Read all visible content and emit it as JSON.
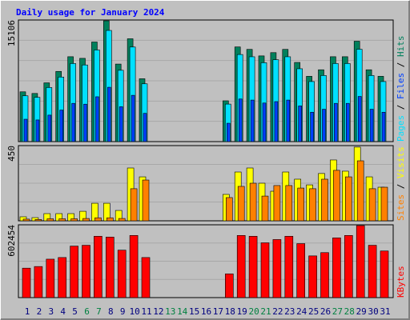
{
  "chart_data": [
    {
      "type": "bar",
      "title": "Daily usage for January 2024",
      "series": [
        {
          "name": "Hits",
          "color": "#00805c",
          "values": [
            6185,
            5983,
            7301,
            8720,
            10546,
            10343,
            12371,
            15006,
            9633,
            12776,
            7808,
            0,
            0,
            0,
            0,
            0,
            0,
            5070,
            11762,
            11458,
            10647,
            11053,
            11458,
            9836,
            8112,
            8923,
            10546,
            10546,
            12472,
            8923,
            8112
          ]
        },
        {
          "name": "Files",
          "color": "#0040ff",
          "values": [
            2780,
            2690,
            3290,
            3920,
            4750,
            4650,
            5570,
            6750,
            4330,
            5750,
            3510,
            0,
            0,
            0,
            0,
            0,
            0,
            2280,
            5290,
            5160,
            4790,
            4970,
            5160,
            4430,
            3650,
            4020,
            4750,
            4750,
            5610,
            4020,
            3650
          ]
        },
        {
          "name": "Pages",
          "color": "#00e0ff",
          "values": [
            5690,
            5500,
            6720,
            8020,
            9700,
            9520,
            11380,
            13810,
            8860,
            11750,
            7180,
            0,
            0,
            0,
            0,
            0,
            0,
            4660,
            10820,
            10540,
            9800,
            10170,
            10540,
            9050,
            7460,
            8210,
            9700,
            9700,
            11470,
            8210,
            7460
          ]
        }
      ],
      "ylim": [
        0,
        15106
      ],
      "yticks": [
        15106
      ],
      "legend_separator": " / "
    },
    {
      "type": "bar",
      "series": [
        {
          "name": "Visits",
          "color": "#ffff00",
          "values": [
            24,
            19,
            43,
            43,
            43,
            57,
            105,
            105,
            62,
            316,
            263,
            0,
            0,
            0,
            0,
            0,
            0,
            158,
            292,
            316,
            225,
            177,
            292,
            249,
            215,
            283,
            364,
            297,
            441,
            263,
            201
          ]
        },
        {
          "name": "Sites",
          "color": "#ff8000",
          "values": [
            10,
            8,
            12,
            12,
            12,
            14,
            18,
            18,
            14,
            192,
            244,
            0,
            0,
            0,
            0,
            0,
            0,
            139,
            206,
            225,
            148,
            211,
            211,
            196,
            192,
            249,
            302,
            263,
            359,
            192,
            201
          ]
        }
      ],
      "ylim": [
        0,
        450
      ],
      "yticks": [
        450
      ],
      "legend_separator": " / "
    },
    {
      "type": "bar",
      "series": [
        {
          "name": "KBytes",
          "color": "#ff0000",
          "values": [
            243700,
            257200,
            318100,
            331700,
            426400,
            433200,
            507700,
            500900,
            392600,
            514400,
            331700,
            0,
            0,
            0,
            0,
            0,
            0,
            196300,
            514400,
            507700,
            453500,
            480600,
            507700,
            446700,
            345200,
            372300,
            494100,
            514400,
            595700,
            433200,
            385800
          ]
        }
      ],
      "ylim": [
        0,
        602454
      ],
      "yticks": [
        602454
      ],
      "categories": [
        "1",
        "2",
        "3",
        "4",
        "5",
        "6",
        "7",
        "8",
        "9",
        "10",
        "11",
        "12",
        "13",
        "14",
        "15",
        "16",
        "17",
        "18",
        "19",
        "20",
        "21",
        "22",
        "23",
        "24",
        "25",
        "26",
        "27",
        "28",
        "29",
        "30",
        "31"
      ],
      "category_colors": [
        "#00007f",
        "#00007f",
        "#00007f",
        "#00007f",
        "#00007f",
        "#008040",
        "#008040",
        "#00007f",
        "#00007f",
        "#00007f",
        "#00007f",
        "#00007f",
        "#008040",
        "#008040",
        "#00007f",
        "#00007f",
        "#00007f",
        "#00007f",
        "#00007f",
        "#008040",
        "#008040",
        "#00007f",
        "#00007f",
        "#00007f",
        "#00007f",
        "#00007f",
        "#008040",
        "#008040",
        "#00007f",
        "#00007f",
        "#00007f"
      ]
    }
  ]
}
